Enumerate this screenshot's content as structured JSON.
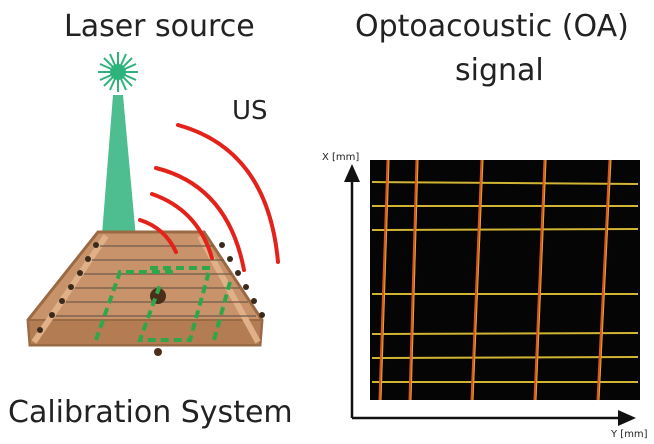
{
  "titles": {
    "laser_source": "Laser source",
    "oa_signal_line1": "Optoacoustic (OA)",
    "oa_signal_line2": "signal",
    "us": "US",
    "calibration_system": "Calibration System"
  },
  "axes": {
    "x_label": "X [mm]",
    "y_label": "Y [mm]"
  },
  "colors": {
    "laser_green": "#2fb37d",
    "us_red": "#e3231b",
    "wood": "#c8936a",
    "wood_edge": "#9a6a45",
    "wire_pattern_green": "#2fa64a",
    "oa_background": "#050505",
    "oa_wire_yellow": "#e8c83a",
    "oa_wire_orange": "#d6561e"
  },
  "icons": {
    "laser_burst": "starburst-icon",
    "axis_arrows": "arrow-icon"
  }
}
